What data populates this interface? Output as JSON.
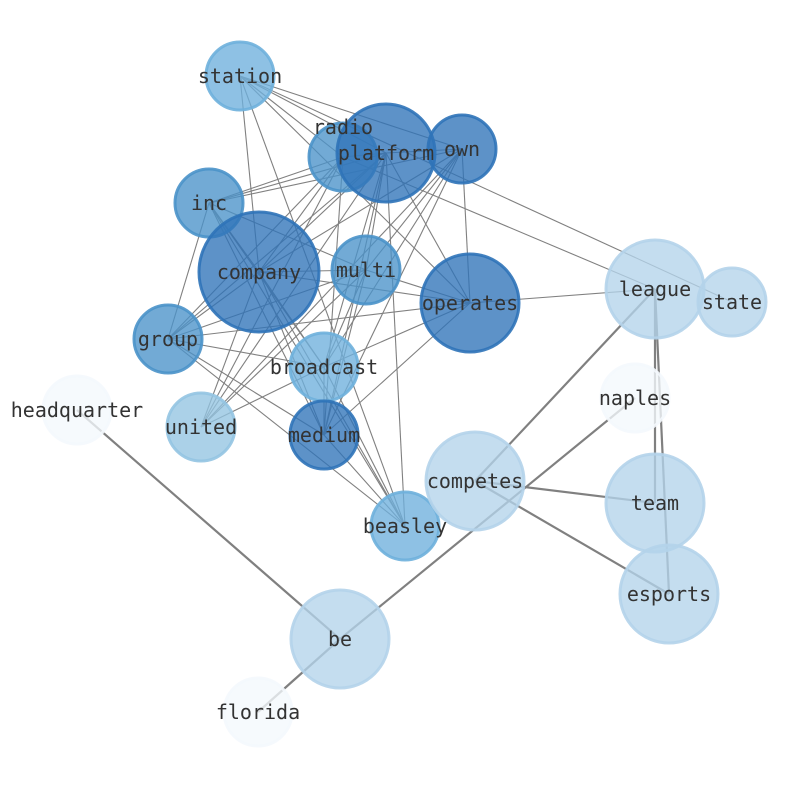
{
  "diagram": {
    "type": "network",
    "edge_color": "#808080",
    "shade_colors": {
      "dark": "#2f73b8",
      "mid": "#4a92c9",
      "light": "#6eb0dc",
      "lighter": "#93c4e2",
      "pale": "#b4d3ea",
      "faint": "#f4f8fd"
    },
    "nodes": [
      {
        "label": "station",
        "shade": "light"
      },
      {
        "label": "radio",
        "shade": "mid"
      },
      {
        "label": "platform",
        "shade": "dark"
      },
      {
        "label": "own",
        "shade": "dark"
      },
      {
        "label": "inc",
        "shade": "mid"
      },
      {
        "label": "company",
        "shade": "dark"
      },
      {
        "label": "multi",
        "shade": "mid"
      },
      {
        "label": "operates",
        "shade": "dark"
      },
      {
        "label": "group",
        "shade": "mid"
      },
      {
        "label": "broadcast",
        "shade": "light"
      },
      {
        "label": "united",
        "shade": "lighter"
      },
      {
        "label": "medium",
        "shade": "dark"
      },
      {
        "label": "beasley",
        "shade": "light"
      },
      {
        "label": "headquarter",
        "shade": "faint"
      },
      {
        "label": "league",
        "shade": "pale"
      },
      {
        "label": "state",
        "shade": "pale"
      },
      {
        "label": "naples",
        "shade": "faint"
      },
      {
        "label": "competes",
        "shade": "pale"
      },
      {
        "label": "team",
        "shade": "pale"
      },
      {
        "label": "esports",
        "shade": "pale"
      },
      {
        "label": "be",
        "shade": "pale"
      },
      {
        "label": "florida",
        "shade": "faint"
      }
    ],
    "edges_thin": [
      [
        "station",
        "radio"
      ],
      [
        "station",
        "platform"
      ],
      [
        "station",
        "own"
      ],
      [
        "station",
        "state"
      ],
      [
        "station",
        "company"
      ],
      [
        "station",
        "beasley"
      ],
      [
        "station",
        "operates"
      ],
      [
        "radio",
        "inc"
      ],
      [
        "radio",
        "company"
      ],
      [
        "radio",
        "group"
      ],
      [
        "radio",
        "united"
      ],
      [
        "radio",
        "medium"
      ],
      [
        "radio",
        "platform"
      ],
      [
        "radio",
        "league"
      ],
      [
        "platform",
        "inc"
      ],
      [
        "platform",
        "company"
      ],
      [
        "platform",
        "multi"
      ],
      [
        "platform",
        "operates"
      ],
      [
        "platform",
        "medium"
      ],
      [
        "platform",
        "broadcast"
      ],
      [
        "platform",
        "beasley"
      ],
      [
        "platform",
        "group"
      ],
      [
        "platform",
        "united"
      ],
      [
        "own",
        "company"
      ],
      [
        "own",
        "multi"
      ],
      [
        "own",
        "operates"
      ],
      [
        "own",
        "medium"
      ],
      [
        "own",
        "broadcast"
      ],
      [
        "own",
        "united"
      ],
      [
        "own",
        "platform"
      ],
      [
        "own",
        "inc"
      ],
      [
        "inc",
        "company"
      ],
      [
        "inc",
        "multi"
      ],
      [
        "inc",
        "broadcast"
      ],
      [
        "inc",
        "medium"
      ],
      [
        "inc",
        "group"
      ],
      [
        "inc",
        "beasley"
      ],
      [
        "company",
        "multi"
      ],
      [
        "company",
        "operates"
      ],
      [
        "company",
        "medium"
      ],
      [
        "company",
        "broadcast"
      ],
      [
        "company",
        "group"
      ],
      [
        "company",
        "united"
      ],
      [
        "company",
        "beasley"
      ],
      [
        "multi",
        "operates"
      ],
      [
        "multi",
        "group"
      ],
      [
        "multi",
        "medium"
      ],
      [
        "multi",
        "broadcast"
      ],
      [
        "multi",
        "united"
      ],
      [
        "operates",
        "league"
      ],
      [
        "operates",
        "medium"
      ],
      [
        "operates",
        "broadcast"
      ],
      [
        "operates",
        "group"
      ],
      [
        "group",
        "broadcast"
      ],
      [
        "group",
        "medium"
      ],
      [
        "group",
        "beasley"
      ],
      [
        "broadcast",
        "medium"
      ],
      [
        "broadcast",
        "beasley"
      ],
      [
        "broadcast",
        "united"
      ],
      [
        "medium",
        "beasley"
      ]
    ],
    "edges_thick": [
      [
        "headquarter",
        "be"
      ],
      [
        "be",
        "naples"
      ],
      [
        "be",
        "florida"
      ],
      [
        "competes",
        "league"
      ],
      [
        "competes",
        "team"
      ],
      [
        "competes",
        "esports"
      ],
      [
        "league",
        "team"
      ],
      [
        "league",
        "esports"
      ]
    ]
  }
}
